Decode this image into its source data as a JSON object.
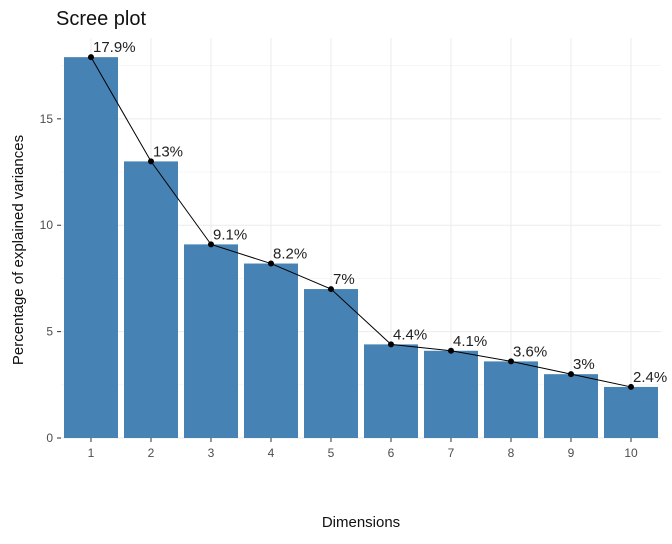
{
  "chart_data": {
    "type": "bar",
    "title": "Scree plot",
    "xlabel": "Dimensions",
    "ylabel": "Percentage of explained variances",
    "categories": [
      "1",
      "2",
      "3",
      "4",
      "5",
      "6",
      "7",
      "8",
      "9",
      "10"
    ],
    "values": [
      17.9,
      13.0,
      9.1,
      8.2,
      7.0,
      4.4,
      4.1,
      3.6,
      3.0,
      2.4
    ],
    "data_labels": [
      "17.9%",
      "13%",
      "9.1%",
      "8.2%",
      "7%",
      "4.4%",
      "4.1%",
      "3.6%",
      "3%",
      "2.4%"
    ],
    "overlay": "line",
    "ylim": [
      0,
      18.8
    ],
    "yticks": [
      0,
      5,
      10,
      15
    ],
    "ytick_labels": [
      "0",
      "5",
      "10",
      "15"
    ],
    "grid": true,
    "legend": "none",
    "colors": {
      "bar": "#4682B4",
      "line": "#000000",
      "point": "#000000"
    }
  }
}
